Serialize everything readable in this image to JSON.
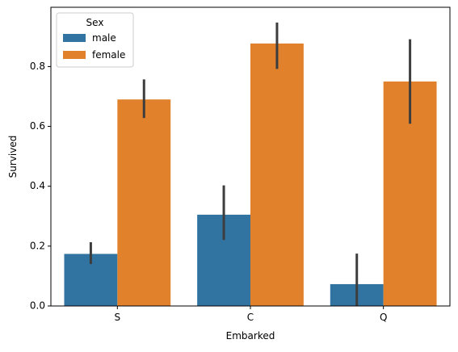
{
  "chart_data": {
    "type": "bar",
    "categories": [
      "S",
      "C",
      "Q"
    ],
    "xlabel": "Embarked",
    "ylabel": "Survived",
    "ylim": [
      0,
      0.998
    ],
    "yticks": [
      0.0,
      0.2,
      0.4,
      0.6,
      0.8
    ],
    "ytick_labels": [
      "0.0",
      "0.2",
      "0.4",
      "0.6",
      "0.8"
    ],
    "grid": false,
    "legend": {
      "title": "Sex",
      "placement": "top-left"
    },
    "series": [
      {
        "name": "male",
        "color": "#3274a1",
        "values": [
          0.174,
          0.305,
          0.073
        ],
        "ci": [
          [
            0.14,
            0.213
          ],
          [
            0.221,
            0.403
          ],
          [
            0.0,
            0.175
          ]
        ]
      },
      {
        "name": "female",
        "color": "#e1812c",
        "values": [
          0.69,
          0.877,
          0.75
        ],
        "ci": [
          [
            0.628,
            0.757
          ],
          [
            0.792,
            0.947
          ],
          [
            0.609,
            0.891
          ]
        ]
      }
    ],
    "error_bar_color": "#3d3d3d"
  }
}
